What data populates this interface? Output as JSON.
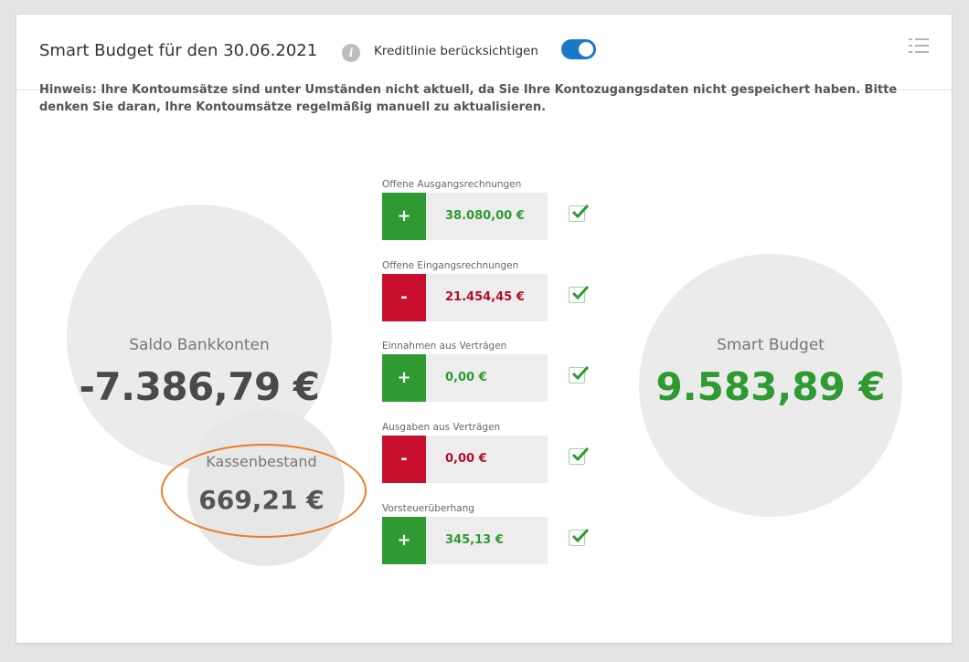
{
  "header": {
    "title": "Smart Budget für den 30.06.2021",
    "kreditlinie_label": "Kreditlinie berücksichtigen",
    "kreditlinie_enabled": true
  },
  "notice": "Hinweis: Ihre Kontoumsätze sind unter Umständen nicht aktuell, da Sie Ihre Kontozugangsdaten nicht gespeichert haben. Bitte denken Sie daran, Ihre Kontoumsätze regelmäßig manuell zu aktualisieren.",
  "saldo": {
    "label": "Saldo Bankkonten",
    "value": "-7.386,79 €"
  },
  "kasse": {
    "label": "Kassenbestand",
    "value": "669,21 €"
  },
  "smart_budget": {
    "label": "Smart Budget",
    "value": "9.583,89 €"
  },
  "items": [
    {
      "label": "Offene Ausgangsrechnungen",
      "sign": "+",
      "amount": "38.080,00 €",
      "checked": true
    },
    {
      "label": "Offene Eingangsrechnungen",
      "sign": "-",
      "amount": "21.454,45 €",
      "checked": true
    },
    {
      "label": "Einnahmen aus Verträgen",
      "sign": "+",
      "amount": "0,00 €",
      "checked": true
    },
    {
      "label": "Ausgaben aus Verträgen",
      "sign": "-",
      "amount": "0,00 €",
      "checked": true
    },
    {
      "label": "Vorsteuerüberhang",
      "sign": "+",
      "amount": "345,13 €",
      "checked": true
    }
  ],
  "icons": [
    "info-icon",
    "list-icon",
    "checkmark-icon"
  ],
  "colors": {
    "positive": "#2f9a32",
    "negative": "#c8102e",
    "toggle": "#1b78c9",
    "highlight": "#ec7a2a"
  }
}
